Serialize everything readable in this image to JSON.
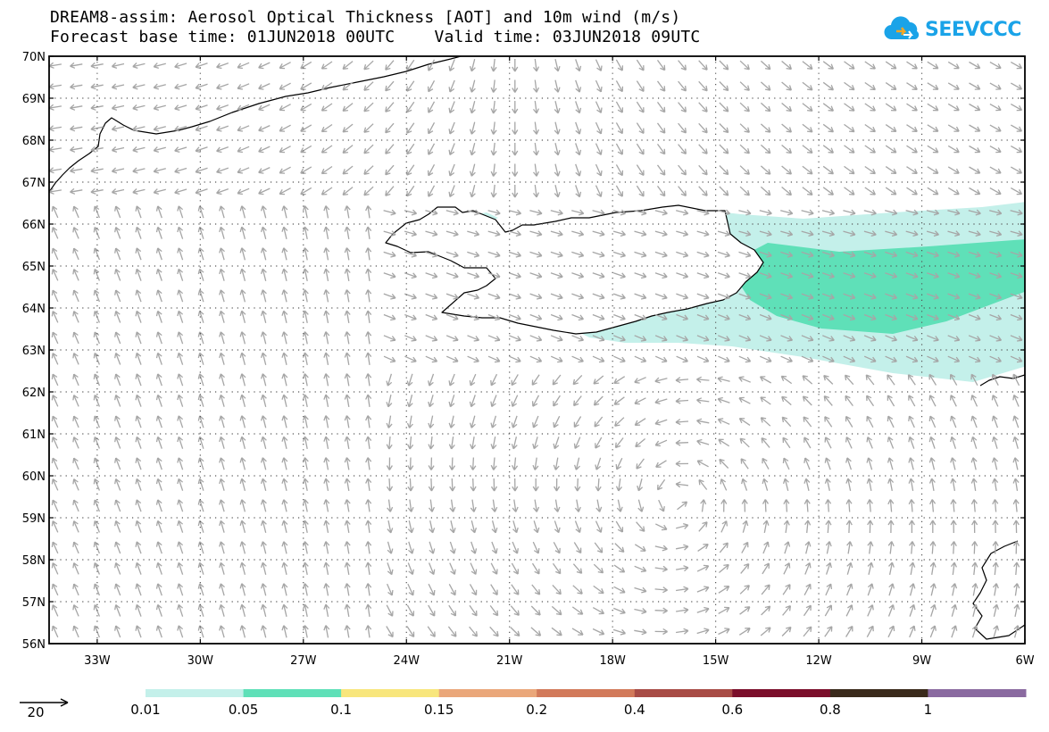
{
  "title_line1": "DREAM8-assim: Aerosol Optical Thickness [AOT] and 10m wind (m/s)",
  "title_line2": "Forecast base time: 01JUN2018 00UTC    Valid time: 03JUN2018 09UTC",
  "logo": {
    "text": "SEEVCCC",
    "icon": "cloud-logo-icon"
  },
  "map": {
    "lon_range": [
      -34.4,
      -6
    ],
    "lat_range": [
      56,
      70
    ],
    "lat_labels": [
      "70N",
      "69N",
      "68N",
      "67N",
      "66N",
      "65N",
      "64N",
      "63N",
      "62N",
      "61N",
      "60N",
      "59N",
      "58N",
      "57N",
      "56N"
    ],
    "lon_labels": [
      "33W",
      "30W",
      "27W",
      "24W",
      "21W",
      "18W",
      "15W",
      "12W",
      "9W",
      "6W"
    ],
    "grid": "dotted"
  },
  "wind_reference": {
    "label": "20",
    "units": "m/s"
  },
  "colorbar": {
    "labels": [
      "0.01",
      "0.05",
      "0.1",
      "0.15",
      "0.2",
      "0.4",
      "0.6",
      "0.8",
      "1"
    ],
    "colors": [
      "#c4f0ea",
      "#5fe0b8",
      "#f8e67c",
      "#eaa77a",
      "#d27a5a",
      "#a84c46",
      "#7b0f2b",
      "#3a2a1b",
      "#8a6aa0",
      "#a8a8a8"
    ]
  },
  "colors": {
    "aot_low": "#c4f0ea",
    "aot_mid": "#5fe0b8",
    "wind_arrow": "#a6a6a6",
    "coast": "#000000",
    "logo": "#1aa3e8"
  }
}
